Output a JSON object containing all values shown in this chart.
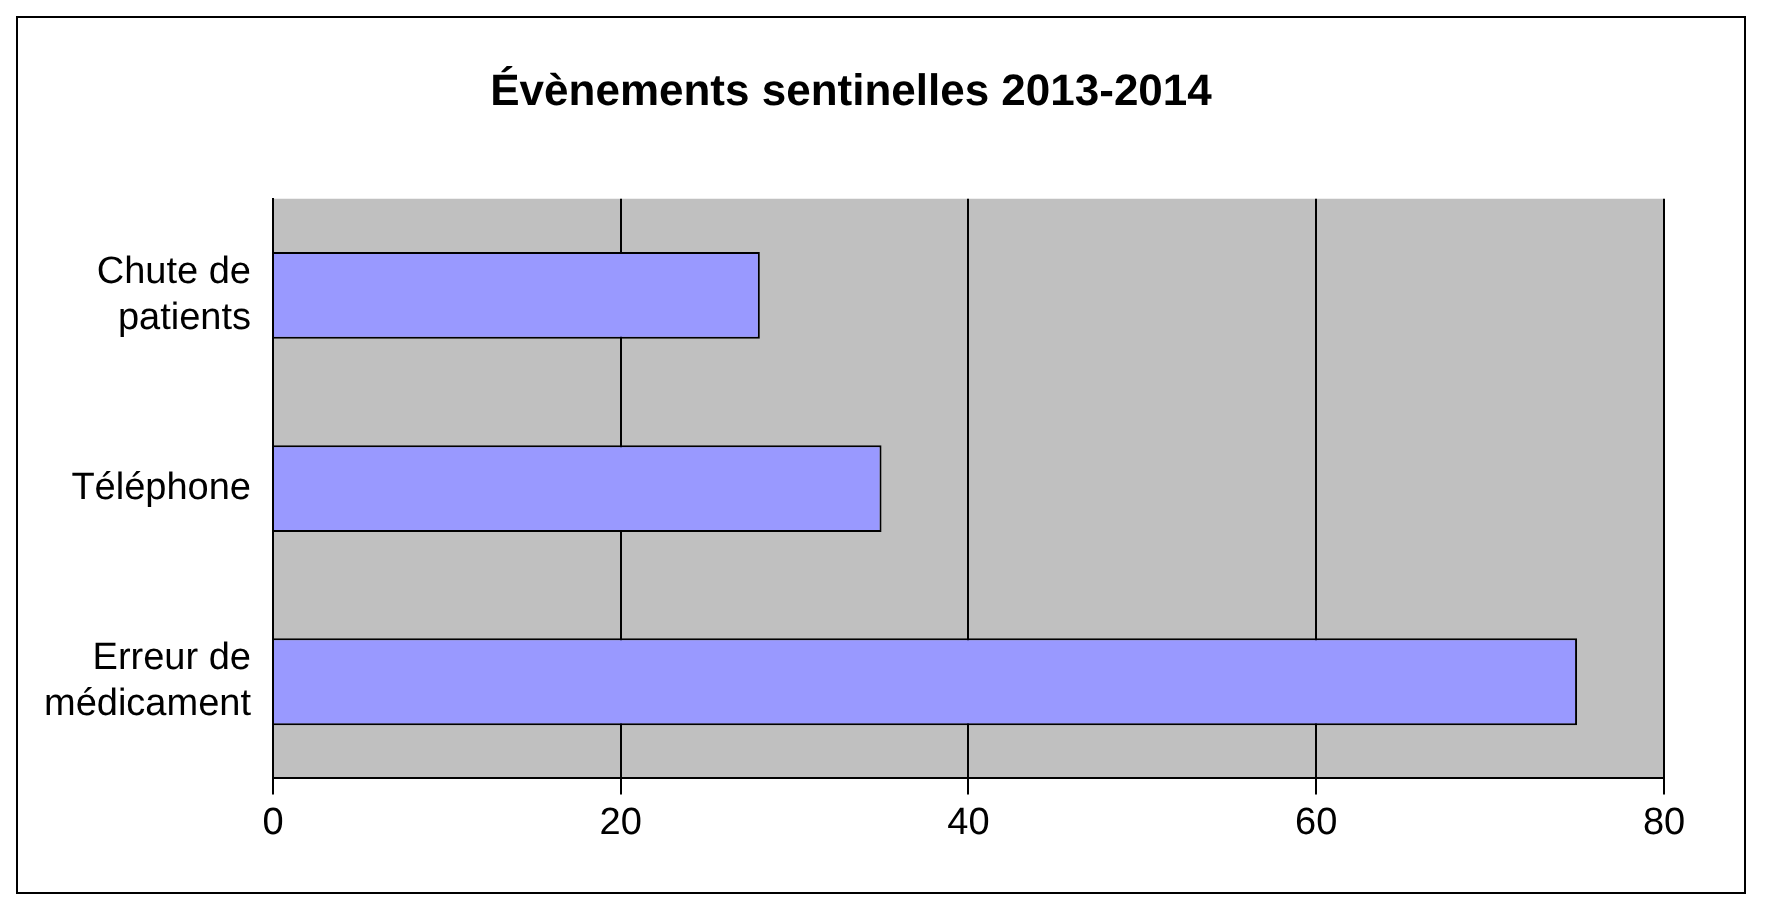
{
  "chart_data": {
    "type": "bar",
    "orientation": "horizontal",
    "title": "Évènements sentinelles 2013-2014",
    "categories": [
      "Chute de patients",
      "Téléphone",
      "Erreur de médicament"
    ],
    "values": [
      28,
      35,
      75
    ],
    "color": "#9999ff",
    "xlim": [
      0,
      80
    ],
    "xticks": [
      0,
      20,
      40,
      60,
      80
    ],
    "grid": "x",
    "legend": false
  }
}
